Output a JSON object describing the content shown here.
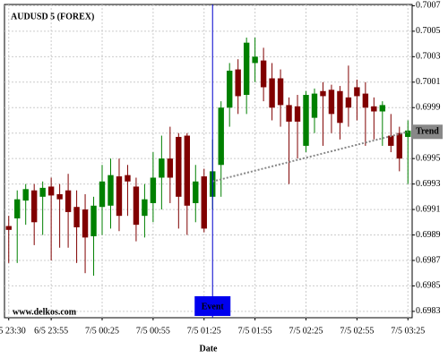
{
  "chart_data": {
    "type": "candlestick",
    "title": "AUDUSD 5 (FOREX)",
    "source": "www.delkos.com",
    "x_label": "Date",
    "categories": [
      "6/5 23:30",
      null,
      null,
      null,
      null,
      "6/5 23:55",
      null,
      null,
      null,
      null,
      null,
      "7/5 00:25",
      null,
      null,
      null,
      null,
      null,
      "7/5 00:55",
      null,
      null,
      null,
      null,
      null,
      "7/5 01:25",
      null,
      null,
      null,
      null,
      null,
      "7/5 01:55",
      null,
      null,
      null,
      null,
      null,
      "7/5 02:25",
      null,
      null,
      null,
      null,
      null,
      "7/5 02:55",
      null,
      null,
      null,
      null,
      null,
      "7/5 03:25"
    ],
    "open": [
      0.69897,
      0.69903,
      0.69917,
      0.69925,
      0.6992,
      0.69928,
      0.69922,
      0.69925,
      0.69912,
      0.6991,
      0.69889,
      0.69912,
      0.69913,
      0.69936,
      0.69937,
      0.69928,
      0.69905,
      0.69915,
      0.69935,
      0.6995,
      0.69967,
      0.69968,
      0.69915,
      0.69936,
      0.6992,
      0.69945,
      0.6999,
      0.7002,
      0.7,
      0.70025,
      0.70027,
      0.70013,
      0.70013,
      0.69992,
      0.69991,
      0.6996,
      0.69982,
      0.70003,
      0.70004,
      0.70003,
      0.69998,
      0.70006,
      0.70001,
      0.69991,
      0.69987,
      0.69968,
      0.6997,
      0.69967
    ],
    "high": [
      0.69905,
      0.69925,
      0.6993,
      0.6993,
      0.69932,
      0.69935,
      0.6993,
      0.69938,
      0.69925,
      0.69922,
      0.6992,
      0.69945,
      0.6995,
      0.6995,
      0.69945,
      0.69935,
      0.6993,
      0.69955,
      0.69968,
      0.69975,
      0.6997,
      0.6997,
      0.69945,
      0.69942,
      0.69965,
      0.69995,
      0.70025,
      0.70028,
      0.70045,
      0.70045,
      0.70037,
      0.70025,
      0.7002,
      0.69998,
      0.7,
      0.70003,
      0.70005,
      0.7001,
      0.70008,
      0.70007,
      0.70023,
      0.70012,
      0.7001,
      0.69998,
      0.69995,
      0.69985,
      0.69975,
      0.6998
    ],
    "low": [
      0.69868,
      0.69868,
      0.69898,
      0.69882,
      0.6989,
      0.6987,
      0.6988,
      0.6988,
      0.69868,
      0.6986,
      0.69858,
      0.6989,
      0.69895,
      0.69893,
      0.69905,
      0.69885,
      0.69888,
      0.699,
      0.6991,
      0.69915,
      0.69895,
      0.6989,
      0.699,
      0.69892,
      0.6991,
      0.6992,
      0.69975,
      0.69985,
      0.69985,
      0.7001,
      0.69995,
      0.6998,
      0.69975,
      0.6993,
      0.6995,
      0.69955,
      0.6997,
      0.6996,
      0.6997,
      0.69965,
      0.69975,
      0.6998,
      0.6996,
      0.69965,
      0.6996,
      0.69955,
      0.6994,
      0.6993
    ],
    "close": [
      0.69894,
      0.69918,
      0.69926,
      0.699,
      0.69927,
      0.69921,
      0.69918,
      0.69908,
      0.69896,
      0.69888,
      0.69913,
      0.69932,
      0.69937,
      0.69905,
      0.69932,
      0.69898,
      0.69918,
      0.69935,
      0.6995,
      0.69935,
      0.6992,
      0.69913,
      0.69932,
      0.69895,
      0.6994,
      0.6999,
      0.70019,
      0.69999,
      0.70041,
      0.7003,
      0.70006,
      0.6999,
      0.69992,
      0.69979,
      0.69979,
      0.7,
      0.70001,
      0.69999,
      0.69985,
      0.69978,
      0.6999,
      0.69999,
      0.6999,
      0.69987,
      0.69992,
      0.6996,
      0.6995,
      0.69972
    ],
    "up_color": "#008000",
    "down_color": "#800000",
    "ylim": [
      0.69825,
      0.70071
    ],
    "yticks": [
      0.6983,
      0.6985,
      0.6987,
      0.6989,
      0.6991,
      0.6993,
      0.6995,
      0.6997,
      0.6999,
      0.7001,
      0.7003,
      0.7005,
      0.7007
    ],
    "grid": true,
    "event": {
      "text": "Event",
      "at": 24
    },
    "trend": {
      "text": "Trend",
      "start": [
        24,
        0.69932
      ],
      "end": [
        47,
        0.69971
      ]
    }
  }
}
